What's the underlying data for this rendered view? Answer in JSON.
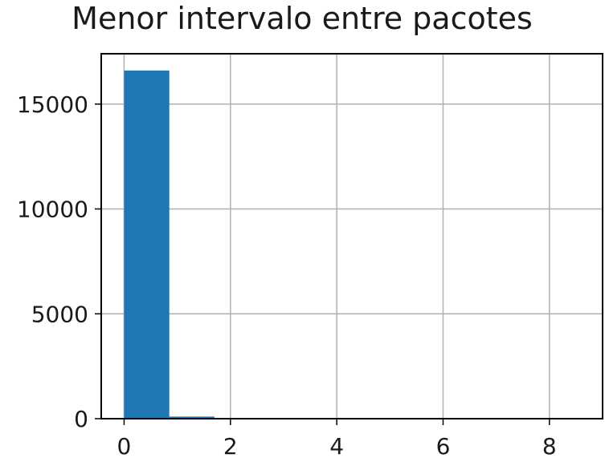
{
  "chart_data": {
    "type": "bar",
    "title": "Menor intervalo entre pacotes",
    "xlabel": "",
    "ylabel": "",
    "xlim": [
      -0.43,
      9.0
    ],
    "ylim": [
      0,
      17400
    ],
    "x_ticks": [
      "0",
      "2",
      "4",
      "6",
      "8"
    ],
    "y_ticks": [
      "0",
      "5000",
      "10000",
      "15000"
    ],
    "grid": true,
    "bins": [
      {
        "x0": 0.0,
        "x1": 0.85,
        "value": 16600
      },
      {
        "x0": 0.85,
        "x1": 1.7,
        "value": 100
      },
      {
        "x0": 1.7,
        "x1": 2.55,
        "value": 5
      },
      {
        "x0": 2.55,
        "x1": 3.4,
        "value": 2
      },
      {
        "x0": 3.4,
        "x1": 4.25,
        "value": 1
      },
      {
        "x0": 4.25,
        "x1": 5.1,
        "value": 1
      },
      {
        "x0": 5.1,
        "x1": 5.95,
        "value": 0
      },
      {
        "x0": 5.95,
        "x1": 6.8,
        "value": 0
      },
      {
        "x0": 6.8,
        "x1": 7.65,
        "value": 0
      },
      {
        "x0": 7.65,
        "x1": 8.5,
        "value": 1
      }
    ],
    "colors": {
      "bar": "#1f77b4",
      "grid": "#b0b0b0",
      "axis": "#000000"
    }
  }
}
